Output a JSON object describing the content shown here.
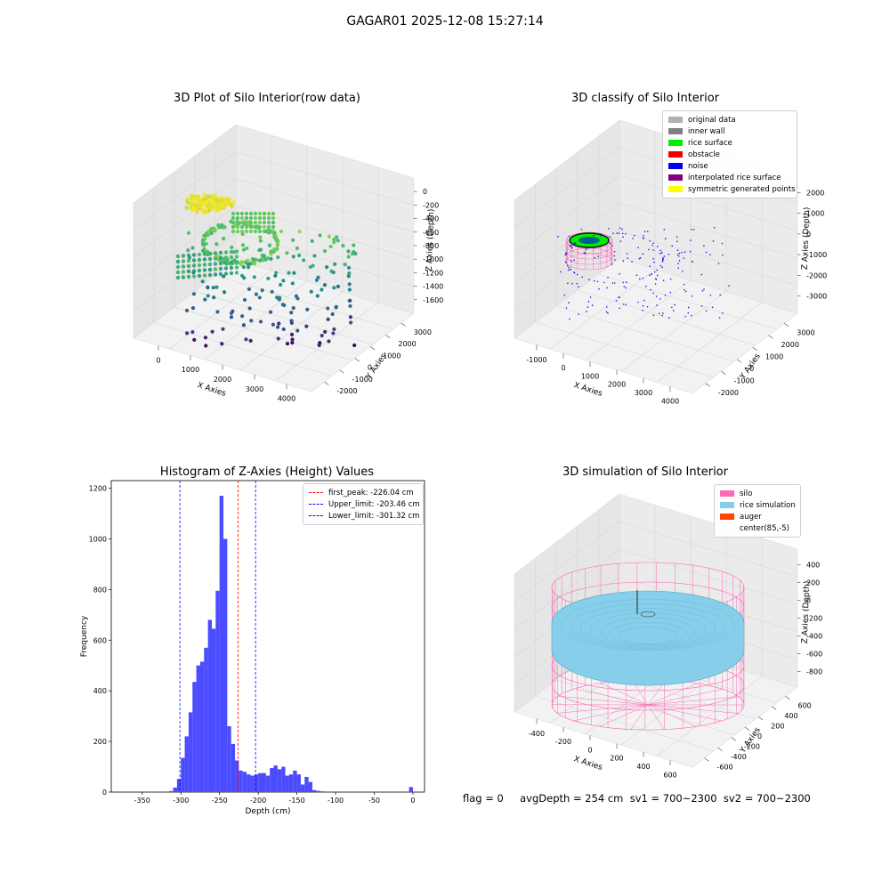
{
  "suptitle": "GAGAR01 2025-12-08 15:27:14",
  "status_line": "flag = 0     avgDepth = 254 cm  sv1 = 700~2300  sv2 = 700~2300",
  "chart_data": [
    {
      "type": "scatter",
      "projection": "3d",
      "title": "3D Plot of Silo Interior(row data)",
      "xlabel": "X Axies",
      "ylabel": "Y Axies",
      "zlabel": "Z Axies (Depth)",
      "x_ticks": [
        "0",
        "1000",
        "2000",
        "3000",
        "4000"
      ],
      "y_ticks": [
        "-2000",
        "-1000",
        "0",
        "1000",
        "2000",
        "3000"
      ],
      "z_ticks": [
        "0",
        "-200",
        "-400",
        "-600",
        "-800",
        "-1000",
        "-1200",
        "-1400",
        "-1600"
      ],
      "colormap": "viridis",
      "grid": true
    },
    {
      "type": "scatter",
      "projection": "3d",
      "title": "3D classify of Silo Interior",
      "xlabel": "X Axies",
      "ylabel": "Y Axies",
      "zlabel": "Z Axies (Depth)",
      "x_ticks": [
        "-1000",
        "0",
        "1000",
        "2000",
        "3000",
        "4000"
      ],
      "y_ticks": [
        "-2000",
        "-1000",
        "0",
        "1000",
        "2000",
        "3000"
      ],
      "z_ticks": [
        "2000",
        "1000",
        "0",
        "-1000",
        "-2000",
        "-3000"
      ],
      "legend": [
        {
          "label": "original data",
          "color": "#b0b0b0"
        },
        {
          "label": "inner wall",
          "color": "#808080"
        },
        {
          "label": "rice surface",
          "color": "#00ee00"
        },
        {
          "label": "obstacle",
          "color": "#ee0000"
        },
        {
          "label": "noise",
          "color": "#0000ee"
        },
        {
          "label": "interpolated rice surface",
          "color": "#800080"
        },
        {
          "label": "symmetric generated points",
          "color": "#ffff00"
        }
      ],
      "legend_loc": "upper right",
      "grid": true
    },
    {
      "type": "bar",
      "title": "Histogram of Z-Axies (Height) Values",
      "xlabel": "Depth (cm)",
      "ylabel": "Frequency",
      "xlim": [
        -390,
        15
      ],
      "ylim": [
        0,
        1230
      ],
      "x_ticks": [
        -350,
        -300,
        -250,
        -200,
        -150,
        -100,
        -50,
        0
      ],
      "y_ticks": [
        0,
        200,
        400,
        600,
        800,
        1000,
        1200
      ],
      "bar_color": "#4b4bff",
      "bins": [
        {
          "x0": -315,
          "x1": -310,
          "v": 4
        },
        {
          "x0": -310,
          "x1": -305,
          "v": 18
        },
        {
          "x0": -305,
          "x1": -300,
          "v": 52
        },
        {
          "x0": -300,
          "x1": -295,
          "v": 135
        },
        {
          "x0": -295,
          "x1": -290,
          "v": 220
        },
        {
          "x0": -290,
          "x1": -285,
          "v": 315
        },
        {
          "x0": -285,
          "x1": -280,
          "v": 435
        },
        {
          "x0": -280,
          "x1": -275,
          "v": 500
        },
        {
          "x0": -275,
          "x1": -270,
          "v": 515
        },
        {
          "x0": -270,
          "x1": -265,
          "v": 570
        },
        {
          "x0": -265,
          "x1": -260,
          "v": 680
        },
        {
          "x0": -260,
          "x1": -255,
          "v": 645
        },
        {
          "x0": -255,
          "x1": -250,
          "v": 795
        },
        {
          "x0": -250,
          "x1": -245,
          "v": 1170
        },
        {
          "x0": -245,
          "x1": -240,
          "v": 1000
        },
        {
          "x0": -240,
          "x1": -235,
          "v": 260
        },
        {
          "x0": -235,
          "x1": -230,
          "v": 190
        },
        {
          "x0": -230,
          "x1": -225,
          "v": 125
        },
        {
          "x0": -225,
          "x1": -220,
          "v": 85
        },
        {
          "x0": -220,
          "x1": -215,
          "v": 80
        },
        {
          "x0": -215,
          "x1": -210,
          "v": 70
        },
        {
          "x0": -210,
          "x1": -205,
          "v": 65
        },
        {
          "x0": -205,
          "x1": -200,
          "v": 70
        },
        {
          "x0": -200,
          "x1": -195,
          "v": 75
        },
        {
          "x0": -195,
          "x1": -190,
          "v": 75
        },
        {
          "x0": -190,
          "x1": -185,
          "v": 65
        },
        {
          "x0": -185,
          "x1": -180,
          "v": 95
        },
        {
          "x0": -180,
          "x1": -175,
          "v": 105
        },
        {
          "x0": -175,
          "x1": -170,
          "v": 90
        },
        {
          "x0": -170,
          "x1": -165,
          "v": 100
        },
        {
          "x0": -165,
          "x1": -160,
          "v": 65
        },
        {
          "x0": -160,
          "x1": -155,
          "v": 70
        },
        {
          "x0": -155,
          "x1": -150,
          "v": 85
        },
        {
          "x0": -150,
          "x1": -145,
          "v": 70
        },
        {
          "x0": -145,
          "x1": -140,
          "v": 30
        },
        {
          "x0": -140,
          "x1": -135,
          "v": 60
        },
        {
          "x0": -135,
          "x1": -130,
          "v": 40
        },
        {
          "x0": -130,
          "x1": -125,
          "v": 8
        },
        {
          "x0": -125,
          "x1": -120,
          "v": 5
        },
        {
          "x0": -120,
          "x1": -115,
          "v": 3
        },
        {
          "x0": -5,
          "x1": 0,
          "v": 20
        }
      ],
      "vlines": [
        {
          "x": -226.04,
          "color": "#ff0000",
          "label": "first_peak: -226.04 cm"
        },
        {
          "x": -203.46,
          "color": "#0000ff",
          "label": "Upper_limit: -203.46 cm"
        },
        {
          "x": -301.32,
          "color": "#0000ff",
          "label": "Lower_limit: -301.32 cm"
        }
      ],
      "legend_loc": "upper right"
    },
    {
      "type": "surface",
      "projection": "3d",
      "title": "3D simulation of Silo Interior",
      "xlabel": "X Axies",
      "ylabel": "Y Axies",
      "zlabel": "Z Axies (Depth)",
      "x_ticks": [
        "-400",
        "-200",
        "0",
        "200",
        "400",
        "600"
      ],
      "y_ticks": [
        "-600",
        "-400",
        "-200",
        "0",
        "200",
        "400",
        "600"
      ],
      "z_ticks": [
        "400",
        "200",
        "0",
        "-200",
        "-400",
        "-600",
        "-800"
      ],
      "legend": [
        {
          "label": "silo",
          "color": "#ff69b4"
        },
        {
          "label": "rice simulation",
          "color": "#87ceeb"
        },
        {
          "label": "auger",
          "color": "#ff4500"
        },
        {
          "label": "center(85,-5)",
          "color": ""
        }
      ],
      "legend_loc": "upper right",
      "grid": true
    }
  ]
}
